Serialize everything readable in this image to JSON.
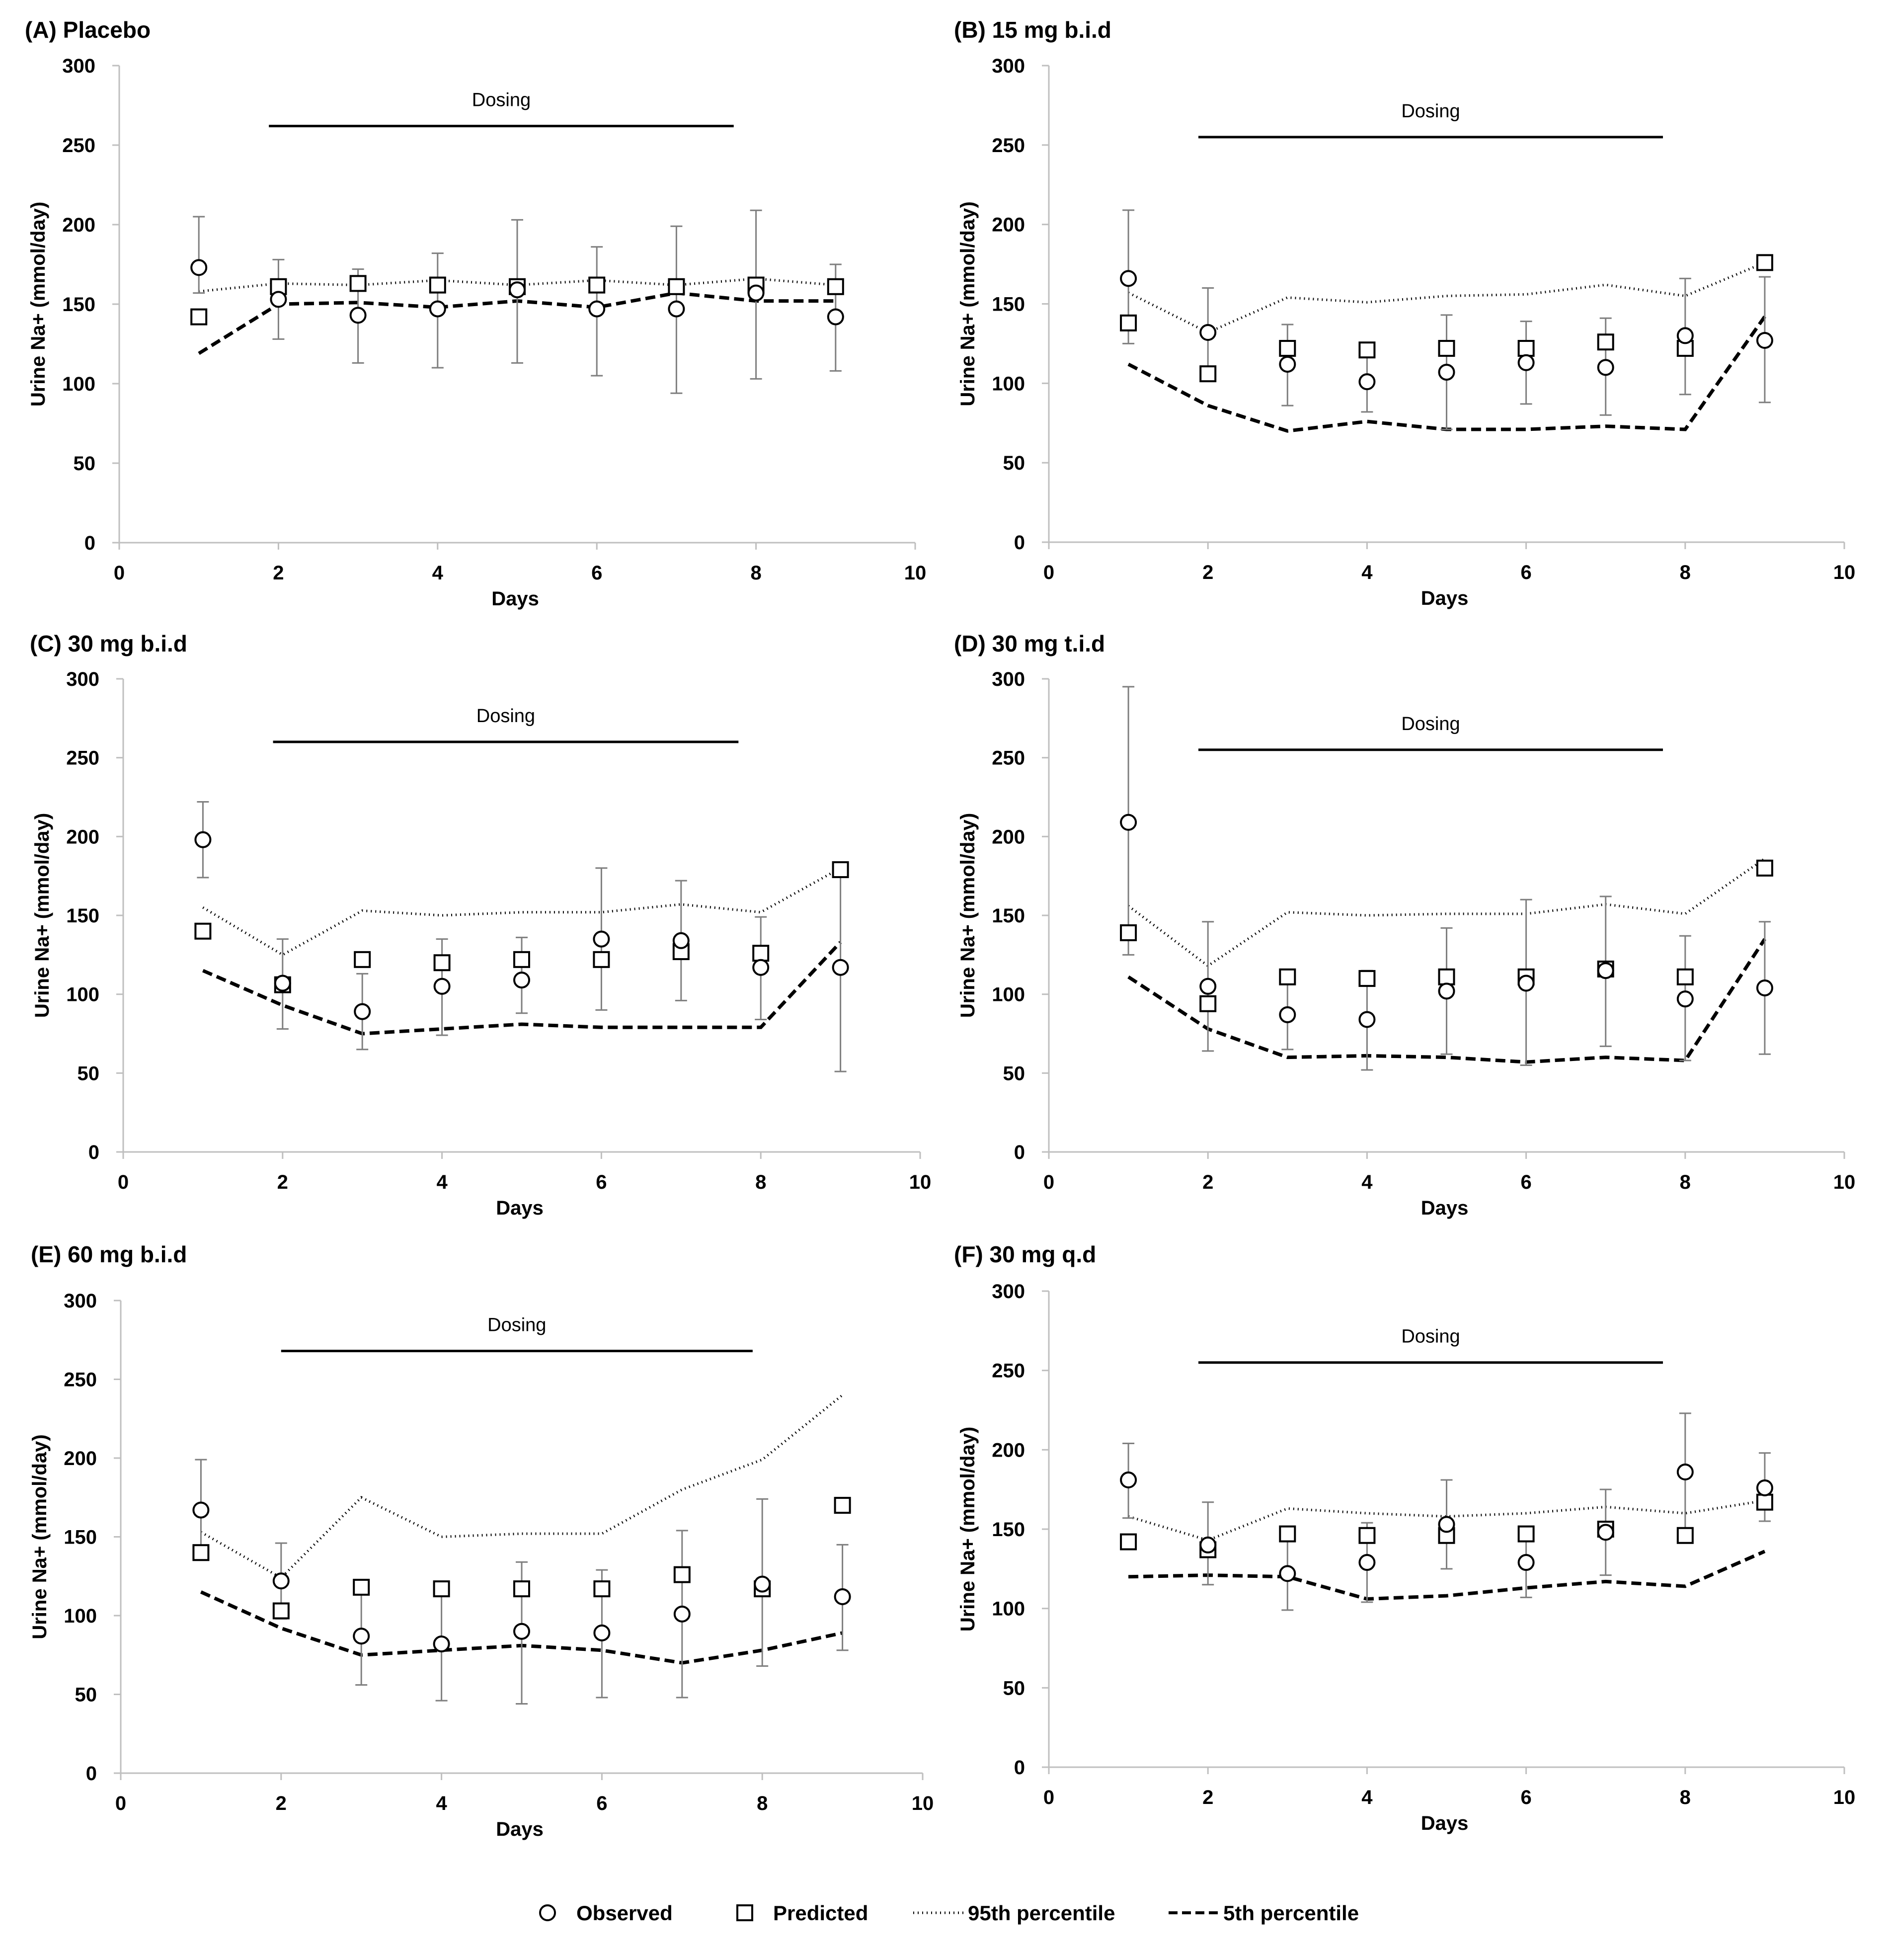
{
  "legend": {
    "observed": "Observed",
    "predicted": "Predicted",
    "p95": "95th percentile",
    "p5": "5th percentile"
  },
  "colors": {
    "axis": "#bfbfbf",
    "line": "#000000",
    "error": "#7f7f7f"
  },
  "chart_data": [
    {
      "type": "scatter",
      "title": "(A) Placebo",
      "xlabel": "Days",
      "ylabel": "Urine Na+ (mmol/day)",
      "xlim": [
        0,
        10
      ],
      "ylim": [
        0,
        300
      ],
      "xticks": [
        0,
        2,
        4,
        6,
        8,
        10
      ],
      "yticks": [
        0,
        50,
        100,
        150,
        200,
        250,
        300
      ],
      "dosing": {
        "label": "Dosing",
        "start": 1.88,
        "end": 7.72,
        "y": 262
      },
      "x": [
        1,
        2,
        3,
        4,
        5,
        6,
        7,
        8,
        9
      ],
      "series": [
        {
          "name": "Observed",
          "values": [
            173,
            153,
            143,
            147,
            159,
            147,
            147,
            157,
            142
          ],
          "err_low": [
            157,
            128,
            113,
            110,
            113,
            105,
            94,
            103,
            108
          ],
          "err_high": [
            205,
            178,
            172,
            182,
            203,
            186,
            199,
            209,
            175
          ]
        },
        {
          "name": "Predicted",
          "values": [
            142,
            161,
            163,
            162,
            161,
            162,
            161,
            162,
            161
          ]
        },
        {
          "name": "95th percentile",
          "values": [
            158,
            163,
            162,
            165,
            162,
            165,
            162,
            166,
            162
          ]
        },
        {
          "name": "5th percentile",
          "values": [
            119,
            150,
            151,
            148,
            152,
            148,
            157,
            152,
            152
          ]
        }
      ]
    },
    {
      "type": "scatter",
      "title": "(B) 15 mg b.i.d",
      "xlabel": "Days",
      "ylabel": "Urine Na+ (mmol/day)",
      "xlim": [
        0,
        10
      ],
      "ylim": [
        0,
        300
      ],
      "xticks": [
        0,
        2,
        4,
        6,
        8,
        10
      ],
      "yticks": [
        0,
        50,
        100,
        150,
        200,
        250,
        300
      ],
      "dosing": {
        "label": "Dosing",
        "start": 1.88,
        "end": 7.72,
        "y": 255
      },
      "x": [
        1,
        2,
        3,
        4,
        5,
        6,
        7,
        8,
        9
      ],
      "series": [
        {
          "name": "Observed",
          "values": [
            166,
            132,
            112,
            101,
            107,
            113,
            110,
            130,
            127
          ],
          "err_low": [
            125,
            103,
            86,
            82,
            71,
            87,
            80,
            93,
            88
          ],
          "err_high": [
            209,
            160,
            137,
            117,
            143,
            139,
            141,
            166,
            167
          ]
        },
        {
          "name": "Predicted",
          "values": [
            138,
            106,
            122,
            121,
            122,
            122,
            126,
            122,
            176
          ]
        },
        {
          "name": "95th percentile",
          "values": [
            157,
            132,
            154,
            151,
            155,
            156,
            162,
            155,
            176
          ]
        },
        {
          "name": "5th percentile",
          "values": [
            112,
            86,
            70,
            76,
            71,
            71,
            73,
            71,
            142
          ]
        }
      ]
    },
    {
      "type": "scatter",
      "title": "(C) 30 mg b.i.d",
      "xlabel": "Days",
      "ylabel": "Urine Na+ (mmol/day)",
      "xlim": [
        0,
        10
      ],
      "ylim": [
        0,
        300
      ],
      "xticks": [
        0,
        2,
        4,
        6,
        8,
        10
      ],
      "yticks": [
        0,
        50,
        100,
        150,
        200,
        250,
        300
      ],
      "dosing": {
        "label": "Dosing",
        "start": 1.88,
        "end": 7.72,
        "y": 260
      },
      "x": [
        1,
        2,
        3,
        4,
        5,
        6,
        7,
        8,
        9
      ],
      "series": [
        {
          "name": "Observed",
          "values": [
            198,
            107,
            89,
            105,
            109,
            135,
            134,
            117,
            117
          ],
          "err_low": [
            174,
            78,
            65,
            74,
            88,
            90,
            96,
            84,
            51
          ],
          "err_high": [
            222,
            135,
            113,
            135,
            136,
            180,
            172,
            149,
            175
          ]
        },
        {
          "name": "Predicted",
          "values": [
            140,
            106,
            122,
            120,
            122,
            122,
            127,
            126,
            179
          ]
        },
        {
          "name": "95th percentile",
          "values": [
            155,
            125,
            153,
            150,
            152,
            152,
            157,
            152,
            180
          ]
        },
        {
          "name": "5th percentile",
          "values": [
            115,
            93,
            75,
            78,
            81,
            79,
            79,
            79,
            133
          ]
        }
      ]
    },
    {
      "type": "scatter",
      "title": "(D) 30 mg t.i.d",
      "xlabel": "Days",
      "ylabel": "Urine Na+ (mmol/day)",
      "xlim": [
        0,
        10
      ],
      "ylim": [
        0,
        300
      ],
      "xticks": [
        0,
        2,
        4,
        6,
        8,
        10
      ],
      "yticks": [
        0,
        50,
        100,
        150,
        200,
        250,
        300
      ],
      "dosing": {
        "label": "Dosing",
        "start": 1.88,
        "end": 7.72,
        "y": 255
      },
      "x": [
        1,
        2,
        3,
        4,
        5,
        6,
        7,
        8,
        9
      ],
      "series": [
        {
          "name": "Observed",
          "values": [
            209,
            105,
            87,
            84,
            102,
            107,
            115,
            97,
            104
          ],
          "err_low": [
            125,
            64,
            65,
            52,
            62,
            55,
            67,
            58,
            62
          ],
          "err_high": [
            295,
            146,
            109,
            115,
            142,
            160,
            162,
            137,
            146
          ]
        },
        {
          "name": "Predicted",
          "values": [
            139,
            94,
            111,
            110,
            111,
            111,
            116,
            111,
            180
          ]
        },
        {
          "name": "95th percentile",
          "values": [
            156,
            118,
            152,
            150,
            151,
            151,
            157,
            151,
            186
          ]
        },
        {
          "name": "5th percentile",
          "values": [
            111,
            78,
            60,
            61,
            60,
            57,
            60,
            58,
            135
          ]
        }
      ]
    },
    {
      "type": "scatter",
      "title": "(E) 60 mg b.i.d",
      "xlabel": "Days",
      "ylabel": "Urine Na+ (mmol/day)",
      "xlim": [
        0,
        10
      ],
      "ylim": [
        0,
        300
      ],
      "xticks": [
        0,
        2,
        4,
        6,
        8,
        10
      ],
      "yticks": [
        0,
        50,
        100,
        150,
        200,
        250,
        300
      ],
      "dosing": {
        "label": "Dosing",
        "start": 2.0,
        "end": 7.88,
        "y": 268
      },
      "x": [
        1,
        2,
        3,
        4,
        5,
        6,
        7,
        8,
        9
      ],
      "series": [
        {
          "name": "Observed",
          "values": [
            167,
            122,
            87,
            82,
            90,
            89,
            101,
            120,
            112
          ],
          "err_low": [
            136,
            98,
            56,
            46,
            44,
            48,
            48,
            68,
            78
          ],
          "err_high": [
            199,
            146,
            118,
            118,
            134,
            129,
            154,
            174,
            145
          ]
        },
        {
          "name": "Predicted",
          "values": [
            140,
            103,
            118,
            117,
            117,
            117,
            126,
            117,
            170
          ]
        },
        {
          "name": "95th percentile",
          "values": [
            153,
            124,
            175,
            150,
            152,
            152,
            180,
            199,
            240
          ]
        },
        {
          "name": "5th percentile",
          "values": [
            115,
            92,
            75,
            78,
            81,
            78,
            70,
            78,
            89
          ]
        }
      ]
    },
    {
      "type": "scatter",
      "title": "(F) 30 mg q.d",
      "xlabel": "Days",
      "ylabel": "Urine Na+ (mmol/day)",
      "xlim": [
        0,
        10
      ],
      "ylim": [
        0,
        300
      ],
      "xticks": [
        0,
        2,
        4,
        6,
        8,
        10
      ],
      "yticks": [
        0,
        50,
        100,
        150,
        200,
        250,
        300
      ],
      "dosing": {
        "label": "Dosing",
        "start": 1.88,
        "end": 7.72,
        "y": 255
      },
      "x": [
        1,
        2,
        3,
        4,
        5,
        6,
        7,
        8,
        9
      ],
      "series": [
        {
          "name": "Observed",
          "values": [
            181,
            140,
            122,
            129,
            153,
            129,
            148,
            186,
            176
          ],
          "err_low": [
            157,
            115,
            99,
            104,
            125,
            107,
            121,
            148,
            155
          ],
          "err_high": [
            204,
            167,
            145,
            154,
            181,
            151,
            175,
            223,
            198
          ]
        },
        {
          "name": "Predicted",
          "values": [
            142,
            137,
            147,
            146,
            146,
            147,
            150,
            146,
            167
          ]
        },
        {
          "name": "95th percentile",
          "values": [
            158,
            143,
            163,
            160,
            158,
            160,
            164,
            160,
            168
          ]
        },
        {
          "name": "5th percentile",
          "values": [
            120,
            121,
            120,
            106,
            108,
            113,
            117,
            114,
            136
          ]
        }
      ]
    }
  ]
}
